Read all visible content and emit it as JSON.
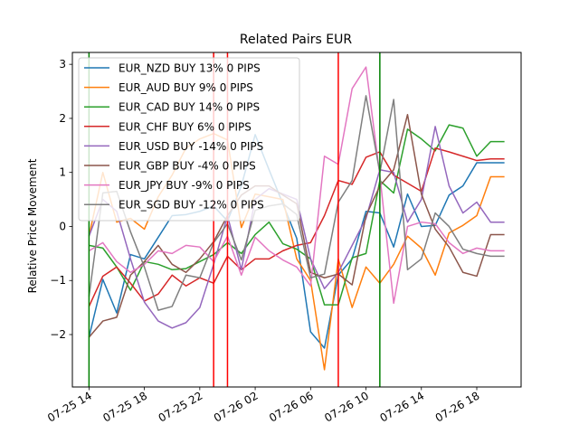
{
  "chart_data": {
    "type": "line",
    "title": "Related Pairs EUR",
    "xlabel": "",
    "ylabel": "Relative Price Movement",
    "x": [
      "07-25 14:00",
      "07-25 15:00",
      "07-25 16:00",
      "07-25 17:00",
      "07-25 18:00",
      "07-25 19:00",
      "07-25 20:00",
      "07-25 21:00",
      "07-25 22:00",
      "07-25 23:00",
      "07-26 00:00",
      "07-26 01:00",
      "07-26 02:00",
      "07-26 03:00",
      "07-26 04:00",
      "07-26 05:00",
      "07-26 06:00",
      "07-26 07:00",
      "07-26 08:00",
      "07-26 09:00",
      "07-26 10:00",
      "07-26 11:00",
      "07-26 12:00",
      "07-26 13:00",
      "07-26 14:00",
      "07-26 15:00",
      "07-26 16:00",
      "07-26 17:00",
      "07-26 18:00",
      "07-26 19:00",
      "07-26 20:00"
    ],
    "x_ticks": [
      "07-25 14",
      "07-25 18",
      "07-25 22",
      "07-26 02",
      "07-26 06",
      "07-26 10",
      "07-26 14",
      "07-26 18"
    ],
    "xlim": [
      "07-25 12:48",
      "07-26 21:12"
    ],
    "ylim": [
      -2.97,
      3.22
    ],
    "y_ticks": [
      -2,
      -1,
      0,
      1,
      2,
      3
    ],
    "grid": false,
    "legend_position": "top-left",
    "series": [
      {
        "name": "EUR_NZD BUY 13% 0 PIPS",
        "color": "#1f77b4",
        "values": [
          -2.05,
          -0.98,
          -1.6,
          -0.52,
          -0.6,
          -0.2,
          0.2,
          0.22,
          0.28,
          0.38,
          0.1,
          0.75,
          1.7,
          1.05,
          0.42,
          -0.22,
          -1.95,
          -2.25,
          -0.9,
          -0.6,
          0.28,
          0.25,
          -0.38,
          0.6,
          0.0,
          0.02,
          0.58,
          0.75,
          1.18,
          1.18,
          1.18
        ]
      },
      {
        "name": "EUR_AUD BUY 9% 0 PIPS",
        "color": "#ff7f0e",
        "values": [
          -0.18,
          1.0,
          0.08,
          0.15,
          -0.05,
          0.55,
          0.95,
          1.45,
          1.62,
          1.72,
          1.6,
          -0.02,
          0.6,
          0.55,
          0.5,
          -0.6,
          -1.0,
          -2.65,
          -0.6,
          -1.5,
          -0.75,
          -1.05,
          -0.7,
          -0.18,
          -0.4,
          -0.9,
          -0.12,
          0.02,
          0.2,
          0.92,
          0.92
        ]
      },
      {
        "name": "EUR_CAD BUY 14% 0 PIPS",
        "color": "#2ca02c",
        "values": [
          -0.35,
          -0.4,
          -0.75,
          -1.18,
          -0.65,
          -0.7,
          -0.8,
          -0.78,
          -0.65,
          -0.52,
          -0.3,
          -0.5,
          -0.15,
          0.08,
          -0.32,
          -0.42,
          -0.6,
          -1.45,
          -1.45,
          -0.58,
          -0.5,
          0.85,
          0.62,
          1.8,
          1.62,
          1.4,
          1.88,
          1.82,
          1.3,
          1.57,
          1.57
        ]
      },
      {
        "name": "EUR_CHF BUY 6% 0 PIPS",
        "color": "#d62728",
        "values": [
          -1.48,
          -0.92,
          -0.75,
          -1.05,
          -1.38,
          -1.25,
          -0.9,
          -1.1,
          -0.95,
          -1.05,
          -0.55,
          -0.8,
          -0.6,
          -0.6,
          -0.45,
          -0.35,
          -0.3,
          0.2,
          0.85,
          0.78,
          1.28,
          1.38,
          0.95,
          0.8,
          0.65,
          1.45,
          1.38,
          1.3,
          1.22,
          1.25,
          1.25
        ]
      },
      {
        "name": "EUR_USD BUY -14% 0 PIPS",
        "color": "#9467bd",
        "values": [
          -0.18,
          0.5,
          0.28,
          -0.6,
          -1.4,
          -1.75,
          -1.88,
          -1.78,
          -1.5,
          -0.7,
          0.2,
          -0.8,
          0.5,
          0.7,
          0.6,
          0.5,
          -0.6,
          -1.15,
          -0.85,
          -0.35,
          0.15,
          1.05,
          1.0,
          0.08,
          0.5,
          1.85,
          0.75,
          0.25,
          0.45,
          0.08,
          0.08
        ]
      },
      {
        "name": "EUR_GBP BUY -4% 0 PIPS",
        "color": "#8c564b",
        "values": [
          -2.05,
          -1.75,
          -1.68,
          -0.9,
          -0.65,
          -0.35,
          -0.7,
          -0.85,
          -0.6,
          -0.28,
          0.2,
          0.58,
          0.75,
          0.75,
          0.58,
          0.42,
          -0.85,
          -0.95,
          -0.88,
          -1.08,
          0.2,
          0.75,
          1.05,
          2.07,
          0.6,
          -0.05,
          -0.38,
          -0.85,
          -0.92,
          -0.15,
          -0.15
        ]
      },
      {
        "name": "EUR_JPY BUY -9% 0 PIPS",
        "color": "#e377c2",
        "values": [
          -0.45,
          -0.3,
          -0.65,
          -0.85,
          -0.7,
          -0.45,
          -0.5,
          -0.35,
          -0.38,
          -0.65,
          -0.18,
          -0.9,
          -0.2,
          -0.45,
          -0.62,
          -0.75,
          -1.1,
          1.3,
          1.15,
          2.55,
          2.95,
          0.95,
          -1.42,
          0.0,
          0.08,
          0.05,
          -0.3,
          -0.5,
          -0.4,
          -0.45,
          -0.45
        ]
      },
      {
        "name": "EUR_SGD BUY -12% 0 PIPS",
        "color": "#7f7f7f",
        "values": [
          -1.3,
          0.62,
          0.65,
          -0.1,
          -0.75,
          -1.55,
          -1.48,
          -0.9,
          -0.95,
          -0.3,
          0.05,
          -0.62,
          0.3,
          0.38,
          0.42,
          0.22,
          -0.95,
          -0.88,
          0.45,
          0.85,
          2.42,
          1.0,
          2.35,
          -0.8,
          -0.6,
          0.25,
          0.0,
          -0.42,
          -0.5,
          -0.55,
          -0.55
        ]
      }
    ],
    "vlines": [
      {
        "x": "07-25 14:00",
        "color": "#008000"
      },
      {
        "x": "07-25 23:00",
        "color": "#ff0000"
      },
      {
        "x": "07-26 00:00",
        "color": "#ff0000"
      },
      {
        "x": "07-26 08:00",
        "color": "#ff0000"
      },
      {
        "x": "07-26 11:00",
        "color": "#008000"
      }
    ]
  }
}
